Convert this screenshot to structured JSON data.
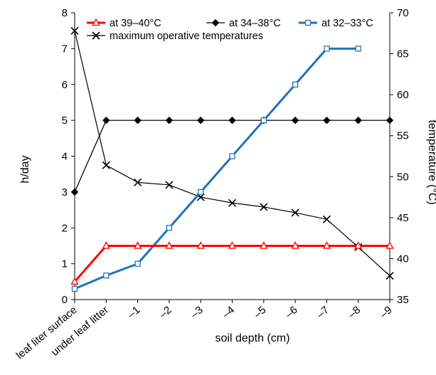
{
  "chart_data": {
    "type": "line",
    "title": "",
    "xlabel": "soil depth (cm)",
    "ylabel": "h/day",
    "y2label": "temperature (°C)",
    "categories": [
      "leaf liter surface",
      "under leaf litter",
      "–1",
      "–2",
      "–3",
      "–4",
      "–5",
      "–6",
      "–7",
      "–8",
      "–9"
    ],
    "ylim": [
      0,
      8
    ],
    "yticks": [
      "0",
      "1",
      "2",
      "3",
      "4",
      "5",
      "6",
      "7",
      "8"
    ],
    "y2lim": [
      35,
      70
    ],
    "y2ticks": [
      "35",
      "40",
      "45",
      "50",
      "55",
      "60",
      "65",
      "70"
    ],
    "grid": false,
    "legend_position": "top",
    "series": [
      {
        "name": "at 39–40°C",
        "axis": "left",
        "color": "#ff0000",
        "marker": "triangle-open",
        "values": [
          0.5,
          1.5,
          1.5,
          1.5,
          1.5,
          1.5,
          1.5,
          1.5,
          1.5,
          1.5,
          1.5
        ]
      },
      {
        "name": "at 34–38°C",
        "axis": "left",
        "color": "#000000",
        "marker": "diamond",
        "values": [
          3,
          5,
          5,
          5,
          5,
          5,
          5,
          5,
          5,
          5,
          5
        ]
      },
      {
        "name": "at 32–33°C",
        "axis": "left",
        "color": "#1e73be",
        "marker": "square-open",
        "values": [
          0.3,
          0.67,
          1,
          2,
          3,
          4,
          5,
          6,
          7,
          7,
          null
        ]
      },
      {
        "name": "maximum operative temperatures",
        "axis": "right",
        "color": "#000000",
        "marker": "x",
        "values": [
          67.8,
          51.4,
          49.3,
          49.0,
          47.5,
          46.8,
          46.3,
          45.6,
          44.8,
          41.4,
          37.9
        ]
      }
    ]
  }
}
